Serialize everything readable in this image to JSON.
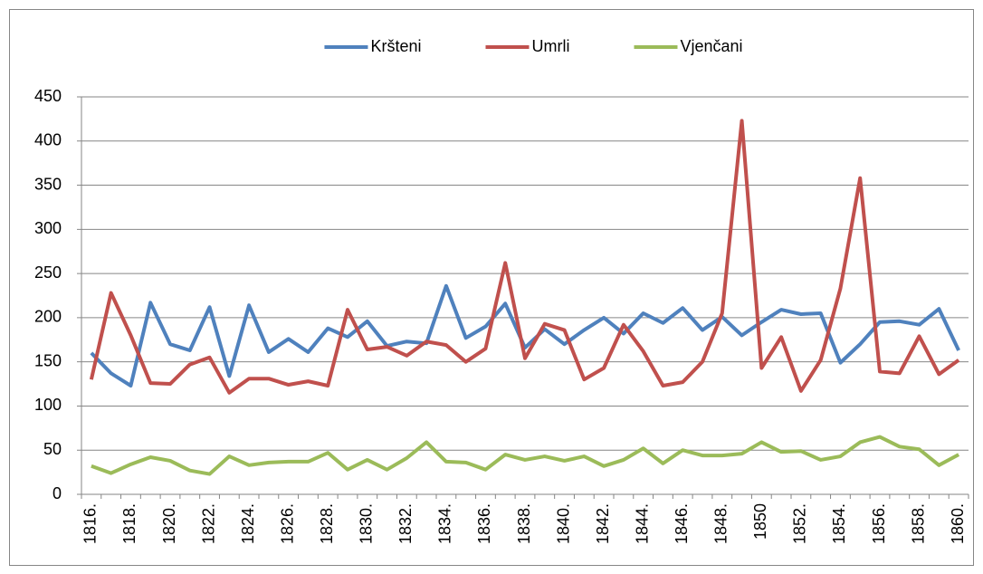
{
  "chart_data": {
    "type": "line",
    "categories": [
      "1816.",
      null,
      "1818.",
      null,
      "1820.",
      null,
      "1822.",
      null,
      "1824.",
      null,
      "1826.",
      null,
      "1828.",
      null,
      "1830.",
      null,
      "1832.",
      null,
      "1834.",
      null,
      "1836.",
      null,
      "1838.",
      null,
      "1840.",
      null,
      "1842.",
      null,
      "1844.",
      null,
      "1846.",
      null,
      "1848.",
      null,
      "1850",
      null,
      "1852.",
      null,
      "1854.",
      null,
      "1856.",
      null,
      "1858.",
      null,
      "1860."
    ],
    "series": [
      {
        "name": "Kršteni",
        "color": "#4f81bd",
        "values": [
          160,
          137,
          123,
          217,
          170,
          163,
          212,
          134,
          214,
          161,
          176,
          161,
          188,
          178,
          196,
          168,
          173,
          171,
          236,
          177,
          190,
          216,
          166,
          187,
          170,
          186,
          200,
          182,
          205,
          194,
          211,
          186,
          201,
          180,
          195,
          209,
          204,
          205,
          149,
          170,
          195,
          196,
          192,
          210,
          163
        ]
      },
      {
        "name": "Umrli",
        "color": "#c0504d",
        "values": [
          130,
          228,
          180,
          126,
          125,
          147,
          155,
          115,
          131,
          131,
          124,
          128,
          123,
          209,
          164,
          167,
          157,
          173,
          169,
          150,
          165,
          262,
          154,
          193,
          186,
          130,
          143,
          192,
          162,
          123,
          127,
          150,
          205,
          423,
          143,
          178,
          117,
          152,
          233,
          358,
          139,
          137,
          179,
          136,
          152
        ]
      },
      {
        "name": "Vjenčani",
        "color": "#9bbb59",
        "values": [
          32,
          24,
          34,
          42,
          38,
          27,
          23,
          43,
          33,
          36,
          37,
          37,
          47,
          28,
          39,
          28,
          41,
          59,
          37,
          36,
          28,
          45,
          39,
          43,
          38,
          43,
          32,
          39,
          52,
          35,
          50,
          44,
          44,
          46,
          59,
          48,
          49,
          39,
          43,
          59,
          65,
          54,
          51,
          33,
          45
        ]
      }
    ],
    "ylim": [
      0,
      450
    ],
    "yticks": [
      0,
      50,
      100,
      150,
      200,
      250,
      300,
      350,
      400,
      450
    ],
    "grid": true,
    "legend": "top"
  }
}
